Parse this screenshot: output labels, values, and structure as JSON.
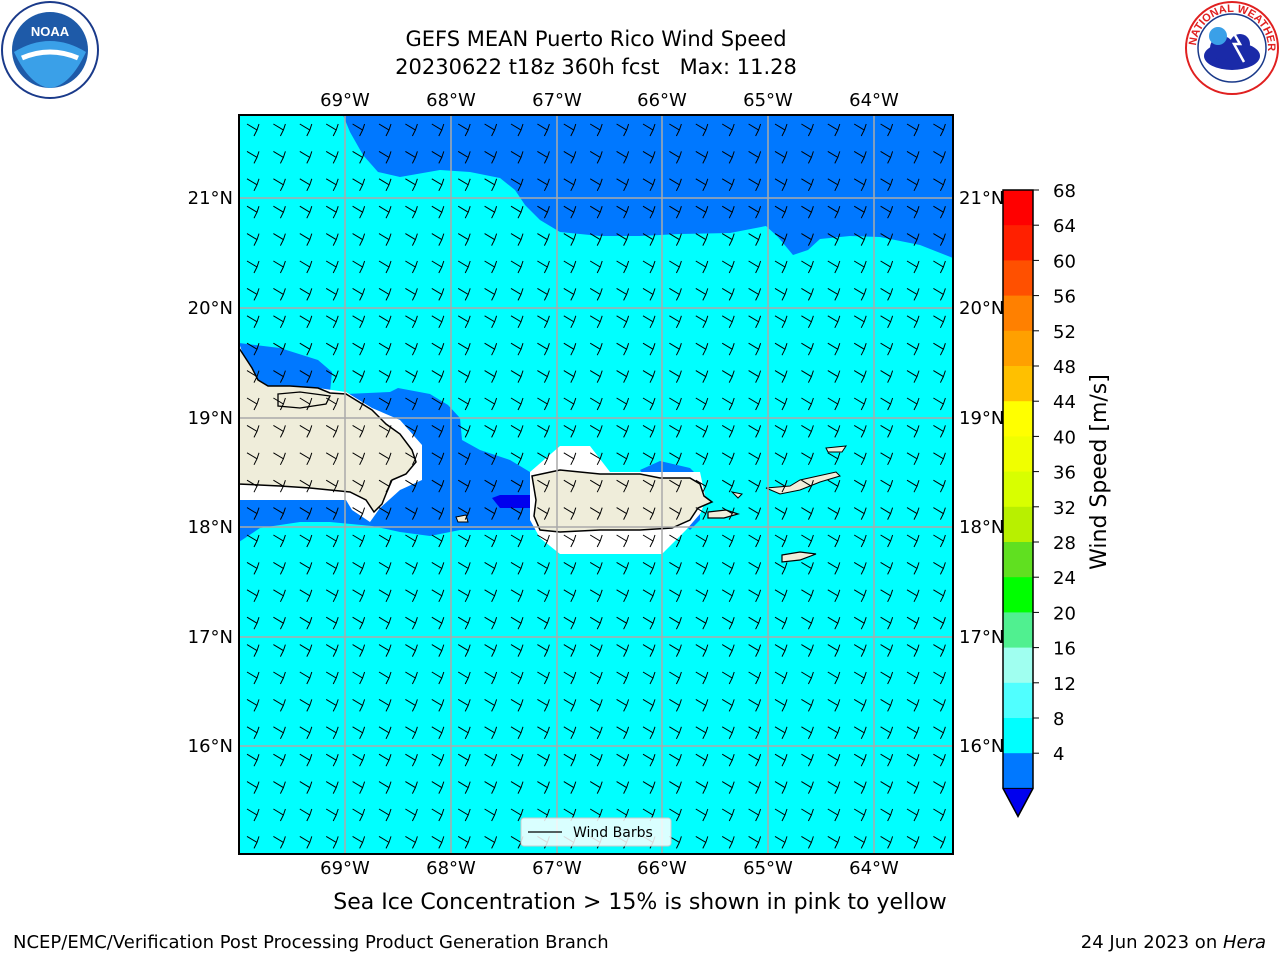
{
  "header": {
    "title_line1": "GEFS MEAN Puerto Rico Wind Speed",
    "title_line2": "20230622 t18z 360h fcst   Max: 11.28"
  },
  "map": {
    "lon_labels": [
      "69°W",
      "68°W",
      "67°W",
      "66°W",
      "65°W",
      "64°W"
    ],
    "lat_labels": [
      "21°N",
      "20°N",
      "19°N",
      "18°N",
      "17°N",
      "16°N"
    ],
    "legend_label": "Wind Barbs"
  },
  "colorbar": {
    "label": "Wind Speed [m/s]",
    "ticks": [
      "68",
      "64",
      "60",
      "56",
      "52",
      "48",
      "44",
      "40",
      "36",
      "32",
      "28",
      "24",
      "20",
      "16",
      "12",
      "8",
      "4"
    ],
    "colors": [
      "#ff0000",
      "#ff2000",
      "#ff5000",
      "#ff8000",
      "#ffa000",
      "#ffc000",
      "#ffff00",
      "#f0ff00",
      "#d8ff00",
      "#b8f000",
      "#60e020",
      "#00ff00",
      "#50f090",
      "#a0fff0",
      "#50ffff",
      "#00ffff",
      "#0078ff"
    ],
    "under_color": "#0000ee"
  },
  "notes": {
    "sea_ice": "Sea Ice Concentration > 15% is shown in pink to yellow"
  },
  "footer": {
    "left": "NCEP/EMC/Verification Post Processing Product Generation Branch",
    "right_date": "24 Jun 2023 on ",
    "right_machine": "Hera"
  },
  "logos": {
    "noaa_text": "NOAA",
    "nws_text": "NATIONAL WEATHER SERVICE"
  }
}
